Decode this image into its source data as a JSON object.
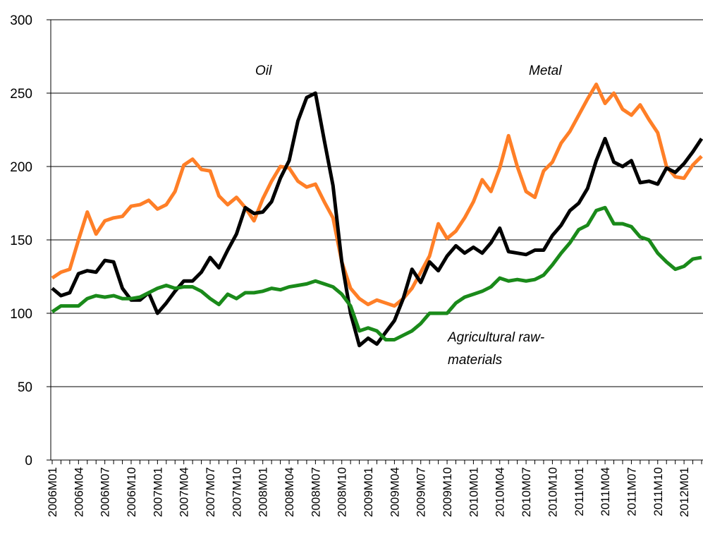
{
  "chart_data": {
    "type": "line",
    "categories": [
      "2006M01",
      null,
      null,
      "2006M04",
      null,
      null,
      "2006M07",
      null,
      null,
      "2006M10",
      null,
      null,
      "2007M01",
      null,
      null,
      "2007M04",
      null,
      null,
      "2007M07",
      null,
      null,
      "2007M10",
      null,
      null,
      "2008M01",
      null,
      null,
      "2008M04",
      null,
      null,
      "2008M07",
      null,
      null,
      "2008M10",
      null,
      null,
      "2009M01",
      null,
      null,
      "2009M04",
      null,
      null,
      "2009M07",
      null,
      null,
      "2009M10",
      null,
      null,
      "2010M01",
      null,
      null,
      "2010M04",
      null,
      null,
      "2010M07",
      null,
      null,
      "2010M10",
      null,
      null,
      "2011M01",
      null,
      null,
      "2011M04",
      null,
      null,
      "2011M07",
      null,
      null,
      "2011M10",
      null,
      null,
      "2012M01",
      null,
      null
    ],
    "series": [
      {
        "color": "#ff7f27",
        "values": [
          124,
          128,
          130,
          150,
          169,
          154,
          163,
          165,
          166,
          173,
          174,
          177,
          171,
          174,
          183,
          201,
          205,
          198,
          197,
          180,
          174,
          179,
          172,
          163,
          178,
          190,
          200,
          199,
          190,
          186,
          188,
          176,
          165,
          135,
          117,
          110,
          106,
          109,
          107,
          105,
          110,
          117,
          128,
          139,
          161,
          151,
          156,
          165,
          176,
          191,
          183,
          199,
          221,
          200,
          183,
          179,
          197,
          203,
          216,
          224,
          235,
          246,
          256,
          243,
          250,
          239,
          235,
          242,
          232,
          223,
          200,
          193,
          192,
          201,
          207
        ]
      },
      {
        "color": "#000000",
        "values": [
          117,
          112,
          114,
          127,
          129,
          128,
          136,
          135,
          117,
          109,
          109,
          114,
          100,
          107,
          115,
          122,
          122,
          128,
          138,
          131,
          143,
          154,
          172,
          168,
          169,
          176,
          192,
          204,
          231,
          247,
          250,
          218,
          187,
          135,
          100,
          78,
          83,
          79,
          87,
          95,
          110,
          130,
          121,
          135,
          129,
          139,
          146,
          141,
          145,
          141,
          148,
          158,
          142,
          141,
          140,
          143,
          143,
          153,
          160,
          170,
          175,
          185,
          204,
          219,
          203,
          200,
          204,
          189,
          190,
          188,
          199,
          196,
          202,
          210,
          219
        ]
      },
      {
        "color": "#1a8a1a",
        "values": [
          101,
          105,
          105,
          105,
          110,
          112,
          111,
          112,
          110,
          110,
          111,
          114,
          117,
          119,
          117,
          118,
          118,
          115,
          110,
          106,
          113,
          110,
          114,
          114,
          115,
          117,
          116,
          118,
          119,
          120,
          122,
          120,
          118,
          113,
          105,
          88,
          90,
          88,
          82,
          82,
          85,
          88,
          93,
          100,
          100,
          100,
          107,
          111,
          113,
          115,
          118,
          124,
          122,
          123,
          122,
          123,
          126,
          133,
          141,
          148,
          157,
          160,
          170,
          172,
          161,
          161,
          159,
          152,
          150,
          141,
          135,
          130,
          132,
          137,
          138
        ]
      }
    ],
    "annotations": [
      "Oil",
      "Metal",
      "Agricultural raw-",
      "materials"
    ],
    "ylim": [
      0,
      300
    ],
    "yticks": [
      0,
      50,
      100,
      150,
      200,
      250,
      300
    ],
    "grid": true
  }
}
